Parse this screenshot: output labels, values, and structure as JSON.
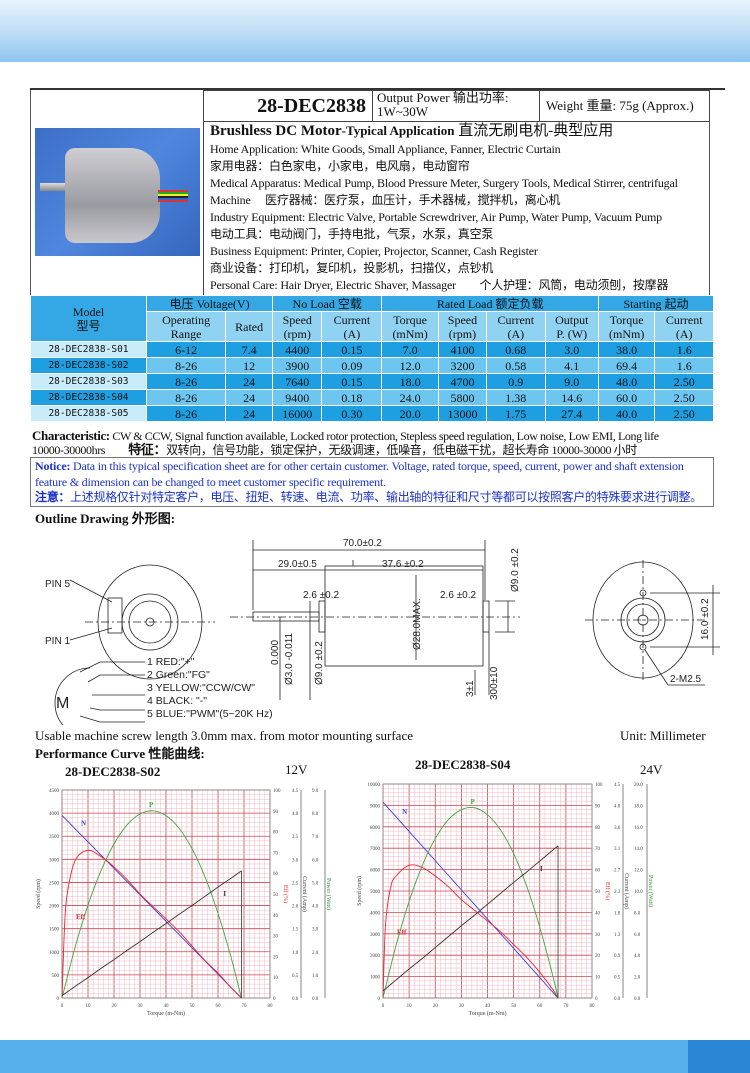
{
  "header": {
    "model": "28-DEC2838",
    "output_power": "Output Power 输出功率:",
    "output_power_value": "1W~30W",
    "weight": "Weight 重量: 75g (Approx.)"
  },
  "applications": {
    "title_bold": "Brushless DC Motor",
    "title_rest": "-Typical Application",
    "title_cn": "直流无刷电机-典型应用",
    "lines": [
      "Home Application: White Goods, Small Appliance, Fanner, Electric Curtain",
      "家用电器：白色家电，小家电，电风扇，电动窗帘",
      "Medical Apparatus: Medical Pump, Blood Pressure Meter, Surgery Tools, Medical Stirrer, centrifugal",
      "Machine　 医疗器械：医疗泵，血压计，手术器械，搅拌机，离心机",
      "Industry Equipment: Electric Valve, Portable Screwdriver, Air Pump, Water Pump, Vacuum Pump",
      "电动工具：电动阀门，手持电批，气泵，水泵，真空泵",
      "Business Equipment: Printer, Copier, Projector, Scanner, Cash Register",
      "商业设备：打印机，复印机，投影机，扫描仪，点钞机",
      "Personal Care: Hair Dryer, Electric Shaver, Massager　　个人护理：风筒，电动须刨，按摩器"
    ]
  },
  "table": {
    "group_headers": [
      "Model\n型号",
      "电压 Voltage(V)",
      "No Load 空载",
      "Rated Load 额定负载",
      "Starting 起动"
    ],
    "model_label": "Model",
    "model_label_cn": "型号",
    "sub_headers": [
      [
        "Operating",
        "Range"
      ],
      [
        "Rated",
        ""
      ],
      [
        "Speed",
        "(rpm)"
      ],
      [
        "Current",
        "(A)"
      ],
      [
        "Torque",
        "(mNm)"
      ],
      [
        "Speed",
        "(rpm)"
      ],
      [
        "Current",
        "(A)"
      ],
      [
        "Output",
        "P. (W)"
      ],
      [
        "Torque",
        "(mNm)"
      ],
      [
        "Current",
        "(A)"
      ]
    ],
    "rows": [
      [
        "28-DEC2838-S01",
        "6-12",
        "7.4",
        "4400",
        "0.15",
        "7.0",
        "4100",
        "0.68",
        "3.0",
        "38.0",
        "1.6"
      ],
      [
        "28-DEC2838-S02",
        "8-26",
        "12",
        "3900",
        "0.09",
        "12.0",
        "3200",
        "0.58",
        "4.1",
        "69.4",
        "1.6"
      ],
      [
        "28-DEC2838-S03",
        "8-26",
        "24",
        "7640",
        "0.15",
        "18.0",
        "4700",
        "0.9",
        "9.0",
        "48.0",
        "2.50"
      ],
      [
        "28-DEC2838-S04",
        "8-26",
        "24",
        "9400",
        "0.18",
        "24.0",
        "5800",
        "1.38",
        "14.6",
        "60.0",
        "2.50"
      ],
      [
        "28-DEC2838-S05",
        "8-26",
        "24",
        "16000",
        "0.30",
        "20.0",
        "13000",
        "1.75",
        "27.4",
        "40.0",
        "2.50"
      ]
    ]
  },
  "characteristic": {
    "label": "Characteristic:",
    "text": " CW & CCW, Signal function available, Locked rotor protection, Stepless speed regulation, Low noise, Low EMI, Long life",
    "line2": "10000-30000hrs",
    "label_cn": "特征：",
    "text_cn": "双转向，信号功能，锁定保护，无级调速，低噪音，低电磁干扰，超长寿命 10000-30000 小时"
  },
  "notice": {
    "label": "Notice:",
    "text": " Data in this typical specification sheet are for other certain customer. Voltage, rated torque, speed, current, power and shaft extension feature & dimension can be changed to meet customer specific requirement.",
    "label_cn": "注意：",
    "text_cn": "上述规格仅针对特定客户，电压、扭矩、转速、电流、功率、输出轴的特征和尺寸等都可以按照客户的特殊要求进行调整。"
  },
  "drawing": {
    "title": "Outline Drawing 外形图:",
    "pin5": "PIN 5",
    "pin1": "PIN 1",
    "motor": "M",
    "wires": [
      "1 RED:\"+\"",
      "2 Green:\"FG\"",
      "3 YELLOW:\"CCW/CW\"",
      "4 BLACK: \"-\"",
      "5 BLUE:\"PWM\"(5~20K Hz)"
    ],
    "dims": {
      "total": "70.0±0.2",
      "shaft": "29.0±0.5",
      "body": "37.6 ±0.2",
      "boss_l": "2.6 ±0.2",
      "boss_r": "2.6 ±0.2",
      "dia_body": "Ø28.0MAX.",
      "dia_shaft": "Ø3.0 -0.011",
      "dia_shaft_tol": "0.000",
      "dia_boss_l": "Ø9.0 ±0.2",
      "dia_boss_r": "Ø9.0 ±0.2",
      "lead": "3±1",
      "wire": "300±10",
      "holes": "16.0 ±0.2",
      "screw": "2-M2.5"
    },
    "note": "Usable machine screw length 3.0mm max. from motor mounting surface",
    "unit": "Unit: Millimeter"
  },
  "performance": {
    "title": "Performance Curve 性能曲线:"
  },
  "chart_data": [
    {
      "type": "line",
      "title": "28-DEC2838-S02",
      "voltage": "12V",
      "xlabel": "Torque (m-Nm)",
      "ylabel": "Speed (rpm)",
      "y2label": "Eff (%)",
      "y3label": "Current (Amp)",
      "y4label": "Power (Watt)",
      "xlim": [
        0,
        80
      ],
      "xticks": [
        0,
        10,
        20,
        30,
        40,
        50,
        60,
        70,
        80
      ],
      "ylim": [
        0,
        4500
      ],
      "yticks": [
        0,
        500,
        1000,
        1500,
        2000,
        2500,
        3000,
        3500,
        4000,
        4500
      ],
      "y2lim": [
        0,
        100
      ],
      "y3lim": [
        0,
        4.5
      ],
      "y4lim": [
        0,
        9.0
      ],
      "grid": true,
      "series": [
        {
          "name": "N",
          "axis": "speed",
          "color": "#3344dd",
          "x": [
            0,
            5,
            10,
            15,
            20,
            25,
            30,
            35,
            40,
            45,
            50,
            55,
            60,
            65,
            69
          ],
          "y": [
            3950,
            3664,
            3378,
            3091,
            2805,
            2519,
            2233,
            1946,
            1660,
            1374,
            1088,
            801,
            515,
            229,
            0
          ]
        },
        {
          "name": "Eff",
          "axis": "eff",
          "color": "#ee2233",
          "x": [
            0,
            1,
            2,
            5,
            10,
            15,
            20,
            25,
            30,
            35,
            40,
            45,
            50,
            55,
            60,
            65,
            69
          ],
          "y": [
            0,
            35,
            50,
            66,
            71,
            68,
            63,
            57,
            50,
            44,
            38,
            32,
            25,
            18,
            12,
            5,
            0
          ]
        },
        {
          "name": "P",
          "axis": "power",
          "color": "#33aa44",
          "x": [
            0,
            5,
            10,
            15,
            20,
            25,
            30,
            35,
            40,
            45,
            50,
            55,
            60,
            65,
            69
          ],
          "y": [
            0,
            2.18,
            4.02,
            5.51,
            6.67,
            7.49,
            7.96,
            8.1,
            7.89,
            7.35,
            6.46,
            5.24,
            3.66,
            1.77,
            0
          ]
        },
        {
          "name": "I",
          "axis": "current",
          "color": "#333333",
          "x": [
            0,
            5,
            10,
            15,
            20,
            25,
            30,
            35,
            40,
            45,
            50,
            55,
            60,
            65,
            69
          ],
          "y": [
            0.05,
            0.25,
            0.44,
            0.64,
            0.83,
            1.03,
            1.22,
            1.42,
            1.61,
            1.81,
            2.0,
            2.2,
            2.4,
            2.59,
            2.75
          ]
        }
      ]
    },
    {
      "type": "line",
      "title": "28-DEC2838-S04",
      "voltage": "24V",
      "xlabel": "Torque (m-Nm)",
      "ylabel": "Speed (rpm)",
      "y2label": "Eff (%)",
      "y3label": "Current (Amp)",
      "y4label": "Power (Watt)",
      "xlim": [
        0,
        80
      ],
      "xticks": [
        0,
        10,
        20,
        30,
        40,
        50,
        60,
        70,
        80
      ],
      "ylim": [
        0,
        10000
      ],
      "yticks": [
        0,
        1000,
        2000,
        3000,
        4000,
        5000,
        6000,
        7000,
        8000,
        9000,
        10000
      ],
      "y2lim": [
        0,
        100
      ],
      "y3lim": [
        0,
        4.5
      ],
      "y4lim": [
        0,
        20.0
      ],
      "grid": true,
      "series": [
        {
          "name": "N",
          "axis": "speed",
          "color": "#3344dd",
          "x": [
            0,
            5,
            10,
            15,
            20,
            25,
            30,
            35,
            40,
            45,
            50,
            55,
            60,
            65,
            67
          ],
          "y": [
            9150,
            8467,
            7784,
            7101,
            6419,
            5736,
            5053,
            4370,
            3687,
            3005,
            2322,
            1639,
            956,
            273,
            0
          ]
        },
        {
          "name": "Eff",
          "axis": "eff",
          "color": "#ee2233",
          "x": [
            0,
            1,
            3,
            5,
            10,
            15,
            20,
            25,
            30,
            35,
            40,
            45,
            50,
            55,
            60,
            65,
            67
          ],
          "y": [
            0,
            35,
            52,
            57,
            62,
            61,
            57,
            52,
            46,
            41,
            36,
            31,
            25,
            19,
            12,
            4,
            0
          ]
        },
        {
          "name": "P",
          "axis": "power",
          "color": "#33aa44",
          "x": [
            0,
            5,
            10,
            15,
            20,
            25,
            30,
            35,
            40,
            45,
            50,
            55,
            60,
            65,
            67
          ],
          "y": [
            0,
            4.92,
            9.03,
            12.37,
            14.9,
            16.66,
            17.6,
            17.78,
            17.13,
            15.7,
            13.5,
            10.46,
            6.63,
            2.07,
            0
          ]
        },
        {
          "name": "I",
          "axis": "current",
          "color": "#333333",
          "x": [
            0,
            5,
            10,
            15,
            20,
            25,
            30,
            35,
            40,
            45,
            50,
            55,
            60,
            65,
            67
          ],
          "y": [
            0.15,
            0.38,
            0.61,
            0.83,
            1.06,
            1.29,
            1.52,
            1.74,
            1.97,
            2.2,
            2.43,
            2.65,
            2.88,
            3.11,
            3.2
          ]
        }
      ]
    }
  ]
}
